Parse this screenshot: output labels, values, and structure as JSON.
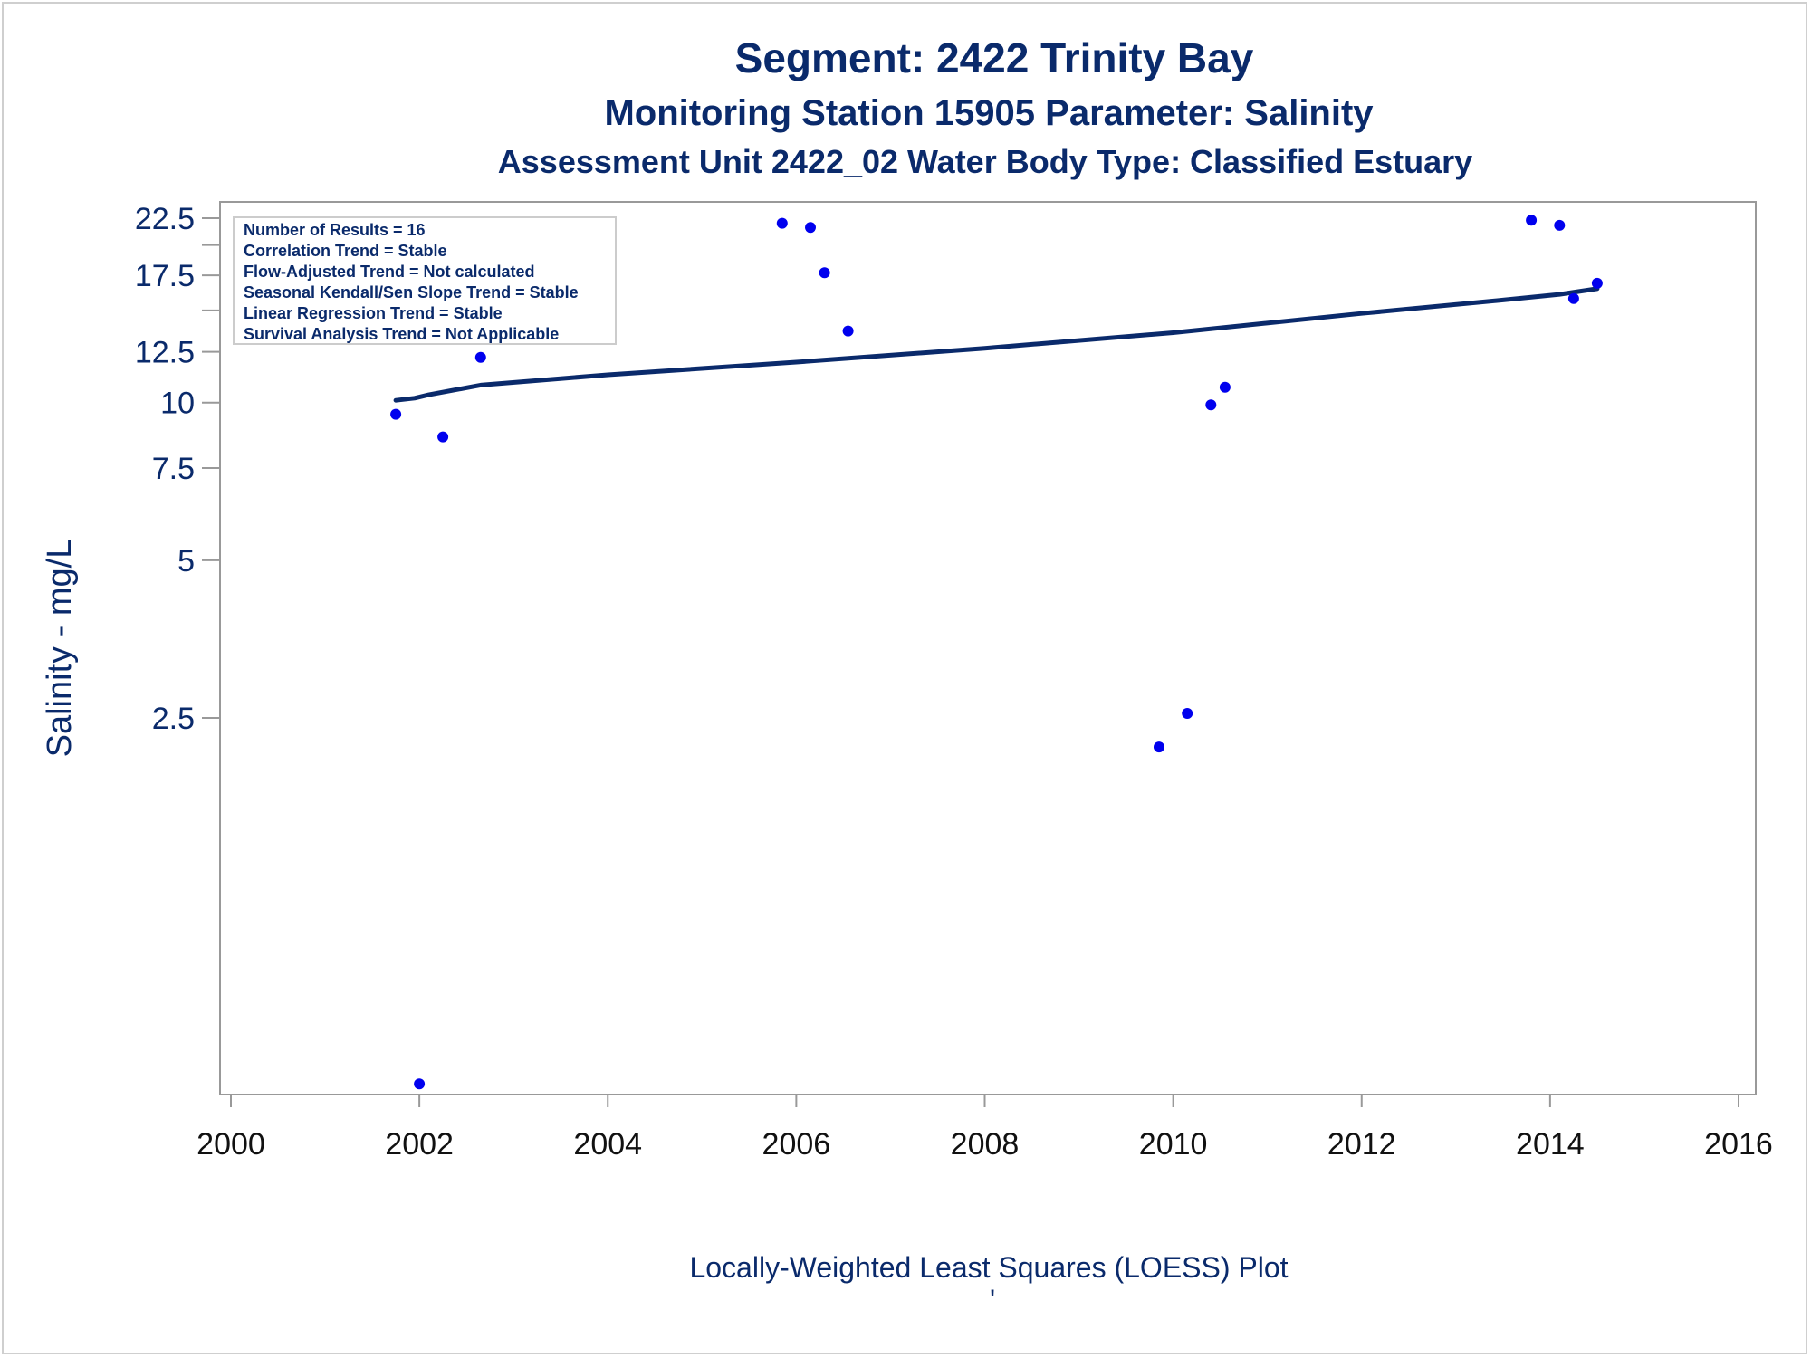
{
  "titles": {
    "line1": "Segment: 2422  Trinity Bay",
    "line2": "Monitoring Station 15905 Parameter: Salinity",
    "line3": "Assessment Unit 2422_02   Water Body Type: Classified Estuary"
  },
  "stats_box": [
    "Number of Results = 16",
    "Correlation Trend = Stable",
    "Flow-Adjusted Trend = Not calculated",
    "Seasonal Kendall/Sen Slope Trend = Stable",
    "Linear Regression Trend = Stable",
    "Survival Analysis Trend = Not Applicable"
  ],
  "footer": {
    "label": "Locally-Weighted Least Squares (LOESS) Plot",
    "mark": "'"
  },
  "colors": {
    "points": "#0000ee",
    "trend_line": "#0a2a6b",
    "text": "#0a2a6b",
    "axis": "#999999"
  },
  "chart_data": {
    "type": "scatter",
    "ylabel": "Salinity - mg/L",
    "y_scale": "log",
    "xlim": [
      2000,
      2016
    ],
    "x_ticks": [
      2000,
      2002,
      2004,
      2006,
      2008,
      2010,
      2012,
      2014,
      2016
    ],
    "y_tick_labels": [
      "22.5",
      "17.5",
      "12.5",
      "10",
      "7.5",
      "5",
      "2.5"
    ],
    "y_ticks": [
      22.5,
      17.5,
      12.5,
      10,
      7.5,
      5,
      2.5
    ],
    "y_minor_ticks": [
      20,
      15
    ],
    "grid": false,
    "legend": "top-left",
    "series": [
      {
        "type": "scatter",
        "points": [
          [
            2001.75,
            9.5
          ],
          [
            2002.0,
            0.5
          ],
          [
            2002.25,
            8.6
          ],
          [
            2002.65,
            12.2
          ],
          [
            2005.85,
            22.0
          ],
          [
            2006.15,
            21.6
          ],
          [
            2006.3,
            17.7
          ],
          [
            2006.55,
            13.7
          ],
          [
            2009.85,
            2.2
          ],
          [
            2010.15,
            2.55
          ],
          [
            2010.4,
            9.9
          ],
          [
            2010.55,
            10.7
          ],
          [
            2013.8,
            22.3
          ],
          [
            2014.1,
            21.8
          ],
          [
            2014.25,
            15.8
          ],
          [
            2014.5,
            16.9
          ]
        ]
      },
      {
        "type": "line",
        "points": [
          [
            2001.75,
            10.1
          ],
          [
            2001.95,
            10.2
          ],
          [
            2002.1,
            10.35
          ],
          [
            2002.65,
            10.8
          ],
          [
            2004.0,
            11.3
          ],
          [
            2006.0,
            11.95
          ],
          [
            2008.0,
            12.7
          ],
          [
            2010.0,
            13.6
          ],
          [
            2012.0,
            14.8
          ],
          [
            2013.5,
            15.7
          ],
          [
            2014.1,
            16.1
          ],
          [
            2014.5,
            16.5
          ]
        ]
      }
    ]
  }
}
